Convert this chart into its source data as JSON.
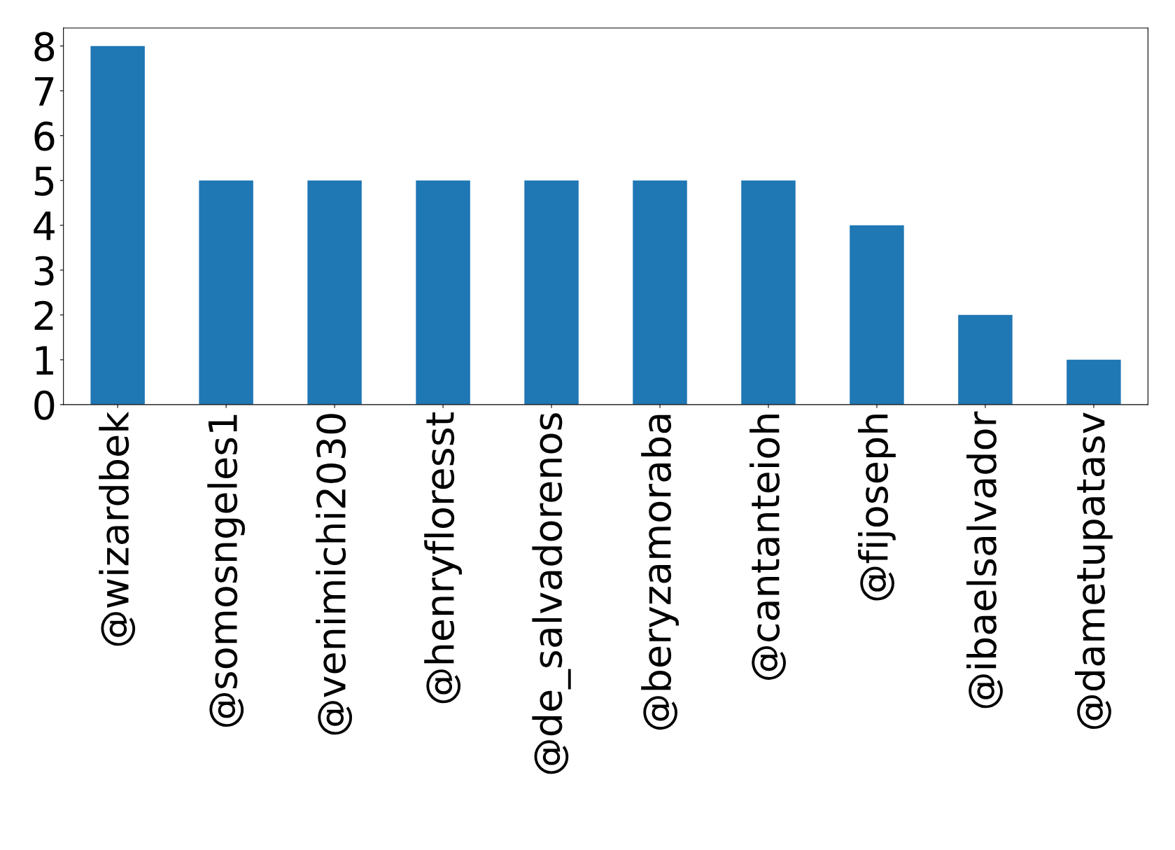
{
  "chart_data": {
    "type": "bar",
    "categories": [
      "@wizardbek",
      "@somosngeles1",
      "@venimichi2030",
      "@henryfloresst",
      "@de_salvadorenos",
      "@beryzamoraba",
      "@cantanteioh",
      "@fijoseph",
      "@ibaelsalvador",
      "@dametupatasv"
    ],
    "values": [
      8,
      5,
      5,
      5,
      5,
      5,
      5,
      4,
      2,
      1
    ],
    "color": "#1f77b4",
    "ylim": [
      0,
      8.4
    ],
    "yticks": [
      0,
      1,
      2,
      3,
      4,
      5,
      6,
      7,
      8
    ],
    "grid": false,
    "legend": false
  }
}
